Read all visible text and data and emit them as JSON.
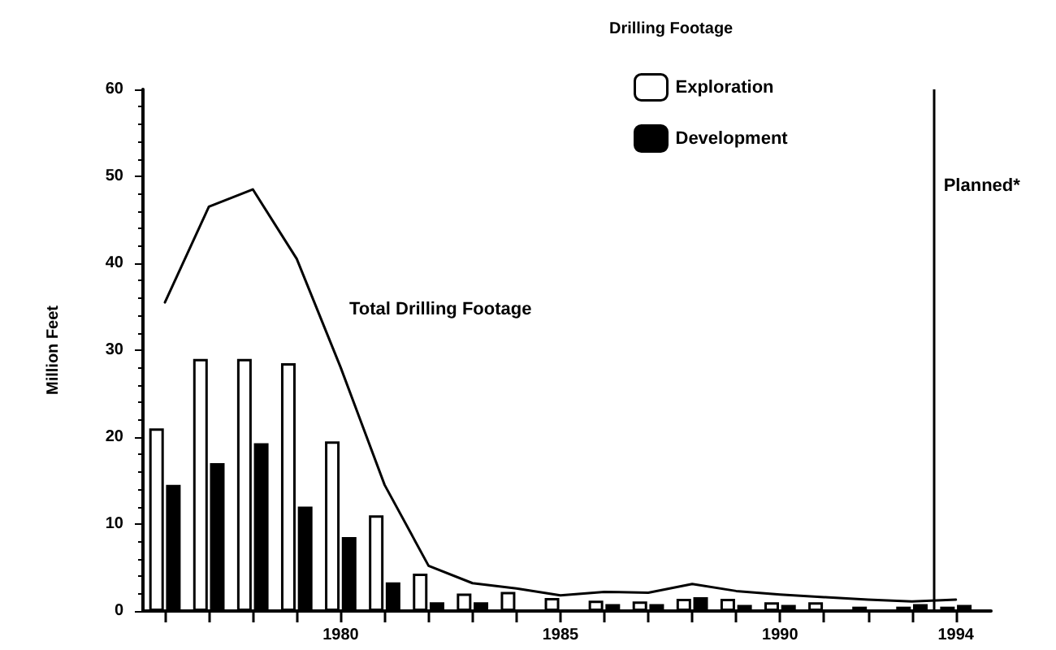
{
  "chart_data": {
    "type": "bar",
    "x": [
      1976,
      1977,
      1978,
      1979,
      1980,
      1981,
      1982,
      1983,
      1984,
      1985,
      1986,
      1987,
      1988,
      1989,
      1990,
      1991,
      1992,
      1993,
      1994
    ],
    "series": [
      {
        "name": "Exploration",
        "color": "#ffffff",
        "values": [
          21,
          29,
          29,
          28.5,
          19.5,
          11,
          4.3,
          2,
          2.2,
          1.5,
          1.2,
          1.1,
          1.4,
          1.4,
          1,
          1,
          0.5,
          0.5,
          0.5
        ]
      },
      {
        "name": "Development",
        "color": "#000000",
        "values": [
          14.5,
          17,
          19.3,
          12,
          8.5,
          3.3,
          1,
          1,
          null,
          null,
          0.8,
          0.8,
          1.6,
          0.7,
          0.7,
          null,
          null,
          0.8,
          0.7
        ]
      },
      {
        "type": "line",
        "color": "#000000",
        "values": [
          35.5,
          46.5,
          48.5,
          40.5,
          28,
          14.5,
          5.2,
          3.2,
          2.6,
          1.8,
          2.2,
          2.1,
          3.1,
          2.3,
          1.9,
          1.6,
          1.3,
          1.1,
          1.3
        ]
      }
    ],
    "ylabel": "Million Feet",
    "legend_title": "Drilling Footage",
    "legend": "top right",
    "annotations": [
      "Total Drilling Footage"
    ],
    "ref_lines": [
      {
        "axis": "x",
        "value": 1993.5,
        "label": "Planned*",
        "color": "#000000"
      }
    ],
    "xlim": [
      1975.5,
      1994.8
    ],
    "xticks": [
      {
        "value": 1976,
        "label": null
      },
      {
        "value": 1977,
        "label": null
      },
      {
        "value": 1978,
        "label": null
      },
      {
        "value": 1979,
        "label": null
      },
      1980,
      {
        "value": 1981,
        "label": null
      },
      {
        "value": 1982,
        "label": null
      },
      {
        "value": 1983,
        "label": null
      },
      {
        "value": 1984,
        "label": null
      },
      1985,
      {
        "value": 1986,
        "label": null
      },
      {
        "value": 1987,
        "label": null
      },
      {
        "value": 1988,
        "label": null
      },
      {
        "value": 1989,
        "label": null
      },
      1990,
      {
        "value": 1991,
        "label": null
      },
      {
        "value": 1992,
        "label": null
      },
      {
        "value": 1993,
        "label": null
      },
      1994
    ],
    "ylim": [
      0,
      60
    ],
    "yticks": [
      0,
      10,
      20,
      30,
      40,
      50,
      60
    ],
    "grid": false,
    "marker": "none",
    "line_style": "solid"
  }
}
